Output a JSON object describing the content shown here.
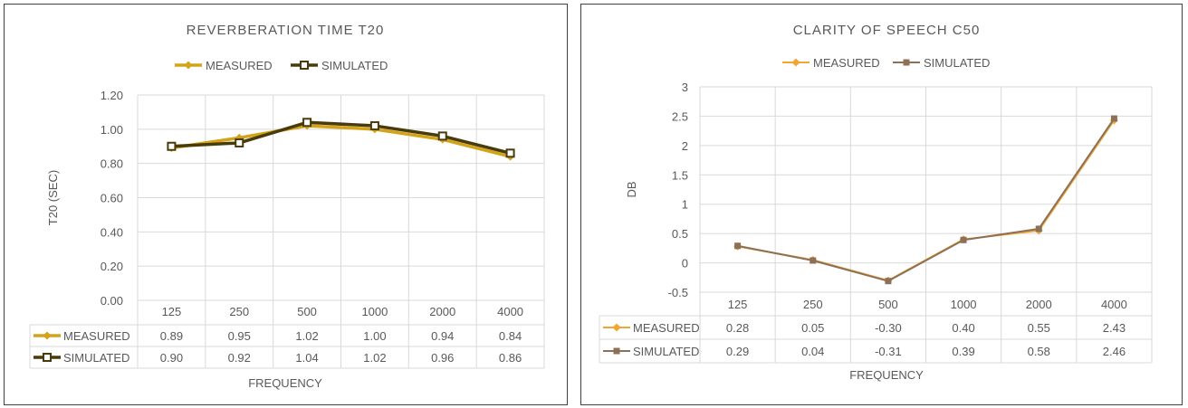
{
  "chart_data": [
    {
      "type": "line",
      "title": "REVERBERATION TIME T20",
      "xlabel": "FREQUENCY",
      "ylabel": "T20 (SEC)",
      "categories": [
        "125",
        "250",
        "500",
        "1000",
        "2000",
        "4000"
      ],
      "ylim": [
        0,
        1.2
      ],
      "yticks": [
        "0.00",
        "0.20",
        "0.40",
        "0.60",
        "0.80",
        "1.00",
        "1.20"
      ],
      "grid": true,
      "legend": "top",
      "data_table": true,
      "series": [
        {
          "name": "MEASURED",
          "values": [
            0.89,
            0.95,
            1.02,
            1.0,
            0.94,
            0.84
          ],
          "labels": [
            "0.89",
            "0.95",
            "1.02",
            "1.00",
            "0.94",
            "0.84"
          ],
          "color": "#D4A418",
          "marker": "diamond"
        },
        {
          "name": "SIMULATED",
          "values": [
            0.9,
            0.92,
            1.04,
            1.02,
            0.96,
            0.86
          ],
          "labels": [
            "0.90",
            "0.92",
            "1.04",
            "1.02",
            "0.96",
            "0.86"
          ],
          "color": "#4A3B0B",
          "marker": "square-open"
        }
      ]
    },
    {
      "type": "line",
      "title": "CLARITY OF SPEECH C50",
      "xlabel": "FREQUENCY",
      "ylabel": "DB",
      "categories": [
        "125",
        "250",
        "500",
        "1000",
        "2000",
        "4000"
      ],
      "ylim": [
        -0.5,
        3
      ],
      "yticks": [
        "-0.5",
        "0",
        "0.5",
        "1",
        "1.5",
        "2",
        "2.5",
        "3"
      ],
      "grid": true,
      "legend": "top",
      "data_table": true,
      "series": [
        {
          "name": "MEASURED",
          "values": [
            0.28,
            0.05,
            -0.3,
            0.4,
            0.55,
            2.43
          ],
          "labels": [
            "0.28",
            "0.05",
            "-0.30",
            "0.40",
            "0.55",
            "2.43"
          ],
          "color": "#F2A533",
          "marker": "diamond"
        },
        {
          "name": "SIMULATED",
          "values": [
            0.29,
            0.04,
            -0.31,
            0.39,
            0.58,
            2.46
          ],
          "labels": [
            "0.29",
            "0.04",
            "-0.31",
            "0.39",
            "0.58",
            "2.46"
          ],
          "color": "#8C7058",
          "marker": "square"
        }
      ]
    }
  ]
}
